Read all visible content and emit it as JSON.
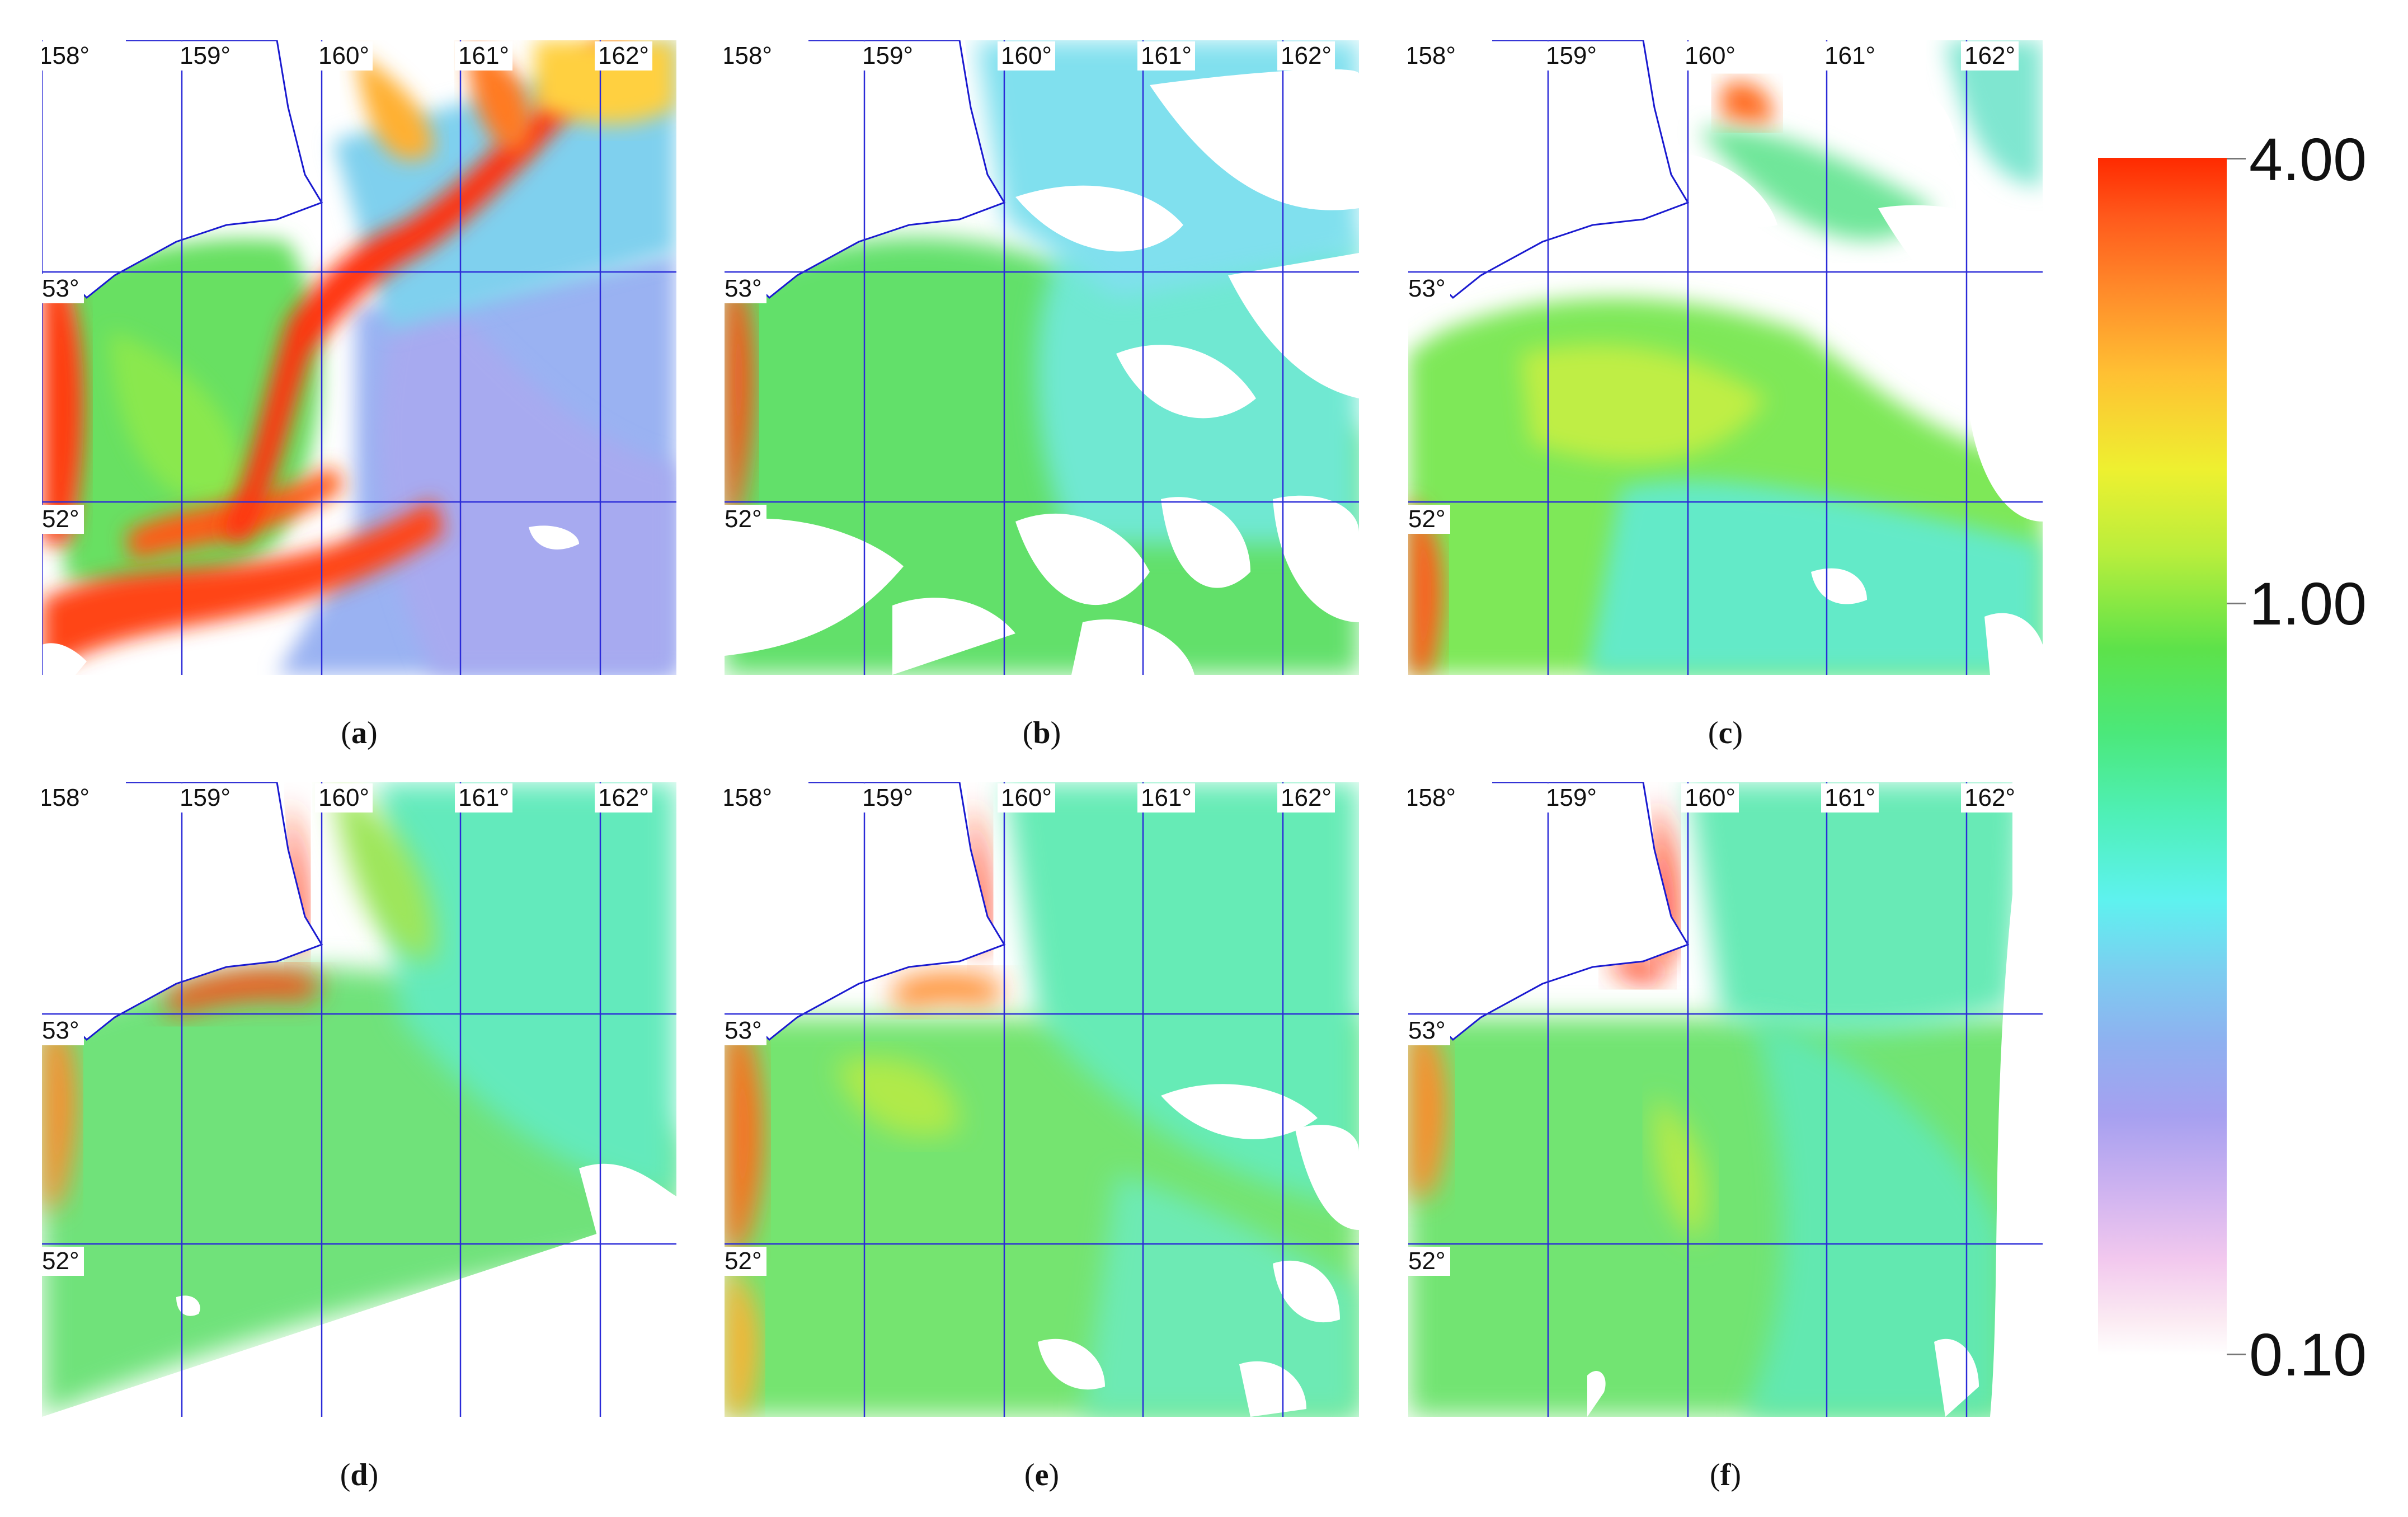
{
  "longitude_labels": [
    "158°",
    "159°",
    "160°",
    "161°",
    "162°"
  ],
  "latitude_labels": [
    "53°",
    "52°"
  ],
  "panels": [
    {
      "id": "a",
      "caption": "a"
    },
    {
      "id": "b",
      "caption": "b"
    },
    {
      "id": "c",
      "caption": "c"
    },
    {
      "id": "d",
      "caption": "d"
    },
    {
      "id": "e",
      "caption": "e"
    },
    {
      "id": "f",
      "caption": "f"
    }
  ],
  "colorbar": {
    "labels": [
      "4.00",
      "1.00",
      "0.10"
    ],
    "range": [
      0.1,
      4.0
    ],
    "scale": "log",
    "colors": [
      "#ff2a00",
      "#ffc033",
      "#5de24a",
      "#5ef2ef",
      "#a6a0f0",
      "#ffffff"
    ]
  },
  "colors": {
    "grid_lines": "#2b2bd8",
    "coastline": "#1a1ad0",
    "land_and_cloud_mask": "#ffffff"
  }
}
